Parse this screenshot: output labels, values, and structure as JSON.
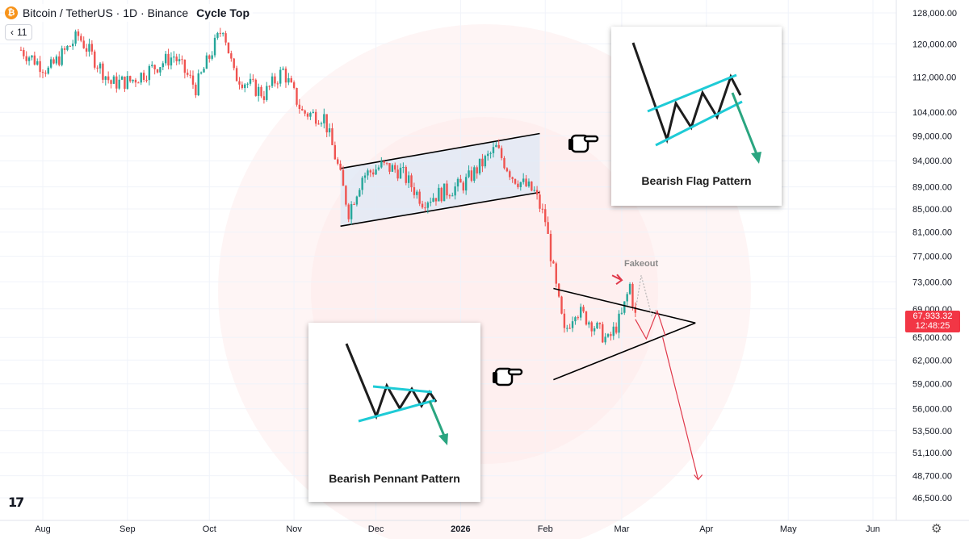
{
  "header": {
    "coin_glyph": "₿",
    "symbol": "Bitcoin / TetherUS · 1D · Binance",
    "indicator": "Cycle Top",
    "collapse_count": "11",
    "collapse_glyph": "‹"
  },
  "price_tag": {
    "price": "67,933.32",
    "countdown": "12:48:25",
    "color": "#f23645"
  },
  "chart_data": {
    "type": "candlestick",
    "title": "Bitcoin / TetherUS · 1D · Binance",
    "y_axis_ticks": [
      128000,
      120000,
      112000,
      104000,
      99000,
      94000,
      89000,
      85000,
      81000,
      77000,
      73000,
      69000,
      65000,
      62000,
      59000,
      56000,
      53500,
      51100,
      48700,
      46500
    ],
    "y_axis_labels": [
      "128,000.00",
      "120,000.00",
      "112,000.00",
      "104,000.00",
      "99,000.00",
      "94,000.00",
      "89,000.00",
      "85,000.00",
      "81,000.00",
      "77,000.00",
      "73,000.00",
      "69,000.00",
      "65,000.00",
      "62,000.00",
      "59,000.00",
      "56,000.00",
      "53,500.00",
      "51,100.00",
      "48,700.00",
      "46,500.00"
    ],
    "y_scale": "log",
    "x_axis_labels": [
      "Aug",
      "Sep",
      "Oct",
      "Nov",
      "Dec",
      "2026",
      "Feb",
      "Mar",
      "Apr",
      "May",
      "Jun"
    ],
    "x_axis_dates": [
      "2025-08-01",
      "2025-09-01",
      "2025-10-01",
      "2025-11-01",
      "2025-12-01",
      "2026-01-01",
      "2026-02-01",
      "2026-03-01",
      "2026-04-01",
      "2026-05-01",
      "2026-06-01"
    ],
    "up_color": "#26a69a",
    "down_color": "#ef5350",
    "close_path": [
      {
        "date": "2025-07-24",
        "close": 118500
      },
      {
        "date": "2025-08-03",
        "close": 113500
      },
      {
        "date": "2025-08-14",
        "close": 122000
      },
      {
        "date": "2025-08-26",
        "close": 110500
      },
      {
        "date": "2025-09-02",
        "close": 111000
      },
      {
        "date": "2025-09-18",
        "close": 117000
      },
      {
        "date": "2025-09-26",
        "close": 109500
      },
      {
        "date": "2025-10-06",
        "close": 124500
      },
      {
        "date": "2025-10-10",
        "close": 112500
      },
      {
        "date": "2025-10-21",
        "close": 108000
      },
      {
        "date": "2025-10-28",
        "close": 113500
      },
      {
        "date": "2025-11-04",
        "close": 104000
      },
      {
        "date": "2025-11-12",
        "close": 103000
      },
      {
        "date": "2025-11-17",
        "close": 93000
      },
      {
        "date": "2025-11-21",
        "close": 84500
      },
      {
        "date": "2025-11-26",
        "close": 91000
      },
      {
        "date": "2025-12-03",
        "close": 93000
      },
      {
        "date": "2025-12-10",
        "close": 92000
      },
      {
        "date": "2025-12-18",
        "close": 86500
      },
      {
        "date": "2026-01-02",
        "close": 89500
      },
      {
        "date": "2026-01-14",
        "close": 96500
      },
      {
        "date": "2026-01-20",
        "close": 91000
      },
      {
        "date": "2026-01-28",
        "close": 88000
      },
      {
        "date": "2026-02-01",
        "close": 83000
      },
      {
        "date": "2026-02-05",
        "close": 72000
      },
      {
        "date": "2026-02-08",
        "close": 65500
      },
      {
        "date": "2026-02-12",
        "close": 69000
      },
      {
        "date": "2026-02-18",
        "close": 67000
      },
      {
        "date": "2026-02-24",
        "close": 64500
      },
      {
        "date": "2026-03-01",
        "close": 68000
      },
      {
        "date": "2026-03-04",
        "close": 72500
      },
      {
        "date": "2026-03-06",
        "close": 67933
      }
    ],
    "annotations": {
      "fakeout_label": "Fakeout",
      "flag_caption": "Bearish Flag Pattern",
      "pennant_caption": "Bearish Pennant Pattern"
    },
    "channel_upper": [
      {
        "date": "2025-11-18",
        "price": 92500
      },
      {
        "date": "2026-01-30",
        "price": 99500
      }
    ],
    "channel_lower": [
      {
        "date": "2025-11-18",
        "price": 82000
      },
      {
        "date": "2026-01-30",
        "price": 88000
      }
    ],
    "pennant_upper": [
      {
        "date": "2026-02-04",
        "price": 72000
      },
      {
        "date": "2026-03-28",
        "price": 67000
      }
    ],
    "pennant_lower": [
      {
        "date": "2026-02-04",
        "price": 59500
      },
      {
        "date": "2026-03-28",
        "price": 67000
      }
    ],
    "projection_target": {
      "date": "2026-03-29",
      "price": 48300
    }
  },
  "colors": {
    "channel_fill": "#dce8f7",
    "pennant_teal": "#1ecbd6",
    "arrow_green": "#2aa580",
    "watermark": "#fdecec",
    "annotation_red": "#e0394b"
  }
}
